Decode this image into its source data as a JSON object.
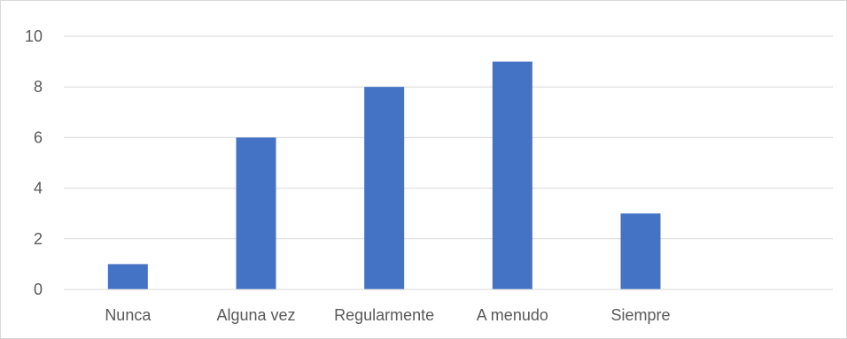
{
  "chart_data": {
    "type": "bar",
    "categories": [
      "Nunca",
      "Alguna vez",
      "Regularmente",
      "A menudo",
      "Siempre",
      ""
    ],
    "values": [
      1,
      6,
      8,
      9,
      3,
      null
    ],
    "title": "",
    "xlabel": "",
    "ylabel": "",
    "ylim": [
      0,
      10
    ],
    "yticks": [
      0,
      2,
      4,
      6,
      8,
      10
    ],
    "ytick_labels": [
      "0",
      "2",
      "4",
      "6",
      "8",
      "10"
    ],
    "grid": true,
    "legend": "none",
    "colors": {
      "bar": "#4472c4",
      "grid": "#d9d9d9",
      "text": "#595959"
    }
  }
}
